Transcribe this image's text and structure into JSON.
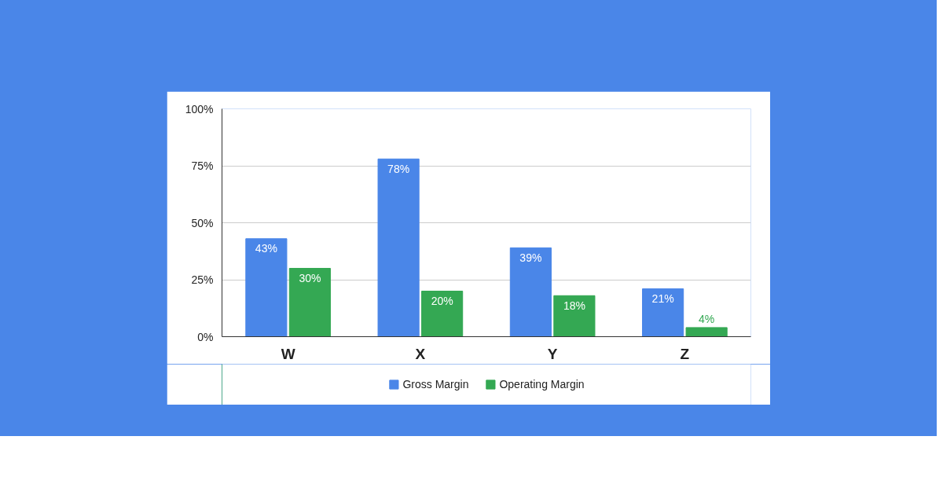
{
  "chart_data": {
    "type": "bar",
    "categories": [
      "W",
      "X",
      "Y",
      "Z"
    ],
    "series": [
      {
        "name": "Gross Margin",
        "color": "#4a86e8",
        "values": [
          43,
          78,
          39,
          21
        ],
        "value_labels": [
          "43%",
          "78%",
          "39%",
          "21%"
        ]
      },
      {
        "name": "Operating Margin",
        "color": "#34a853",
        "values": [
          30,
          20,
          18,
          4
        ],
        "value_labels": [
          "30%",
          "20%",
          "18%",
          "4%"
        ]
      }
    ],
    "ylim": [
      0,
      100
    ],
    "yticks": [
      {
        "value": 0,
        "label": "0%"
      },
      {
        "value": 25,
        "label": "25%"
      },
      {
        "value": 50,
        "label": "50%"
      },
      {
        "value": 75,
        "label": "75%"
      },
      {
        "value": 100,
        "label": "100%"
      }
    ],
    "grid": "y",
    "legend": "bottom"
  }
}
